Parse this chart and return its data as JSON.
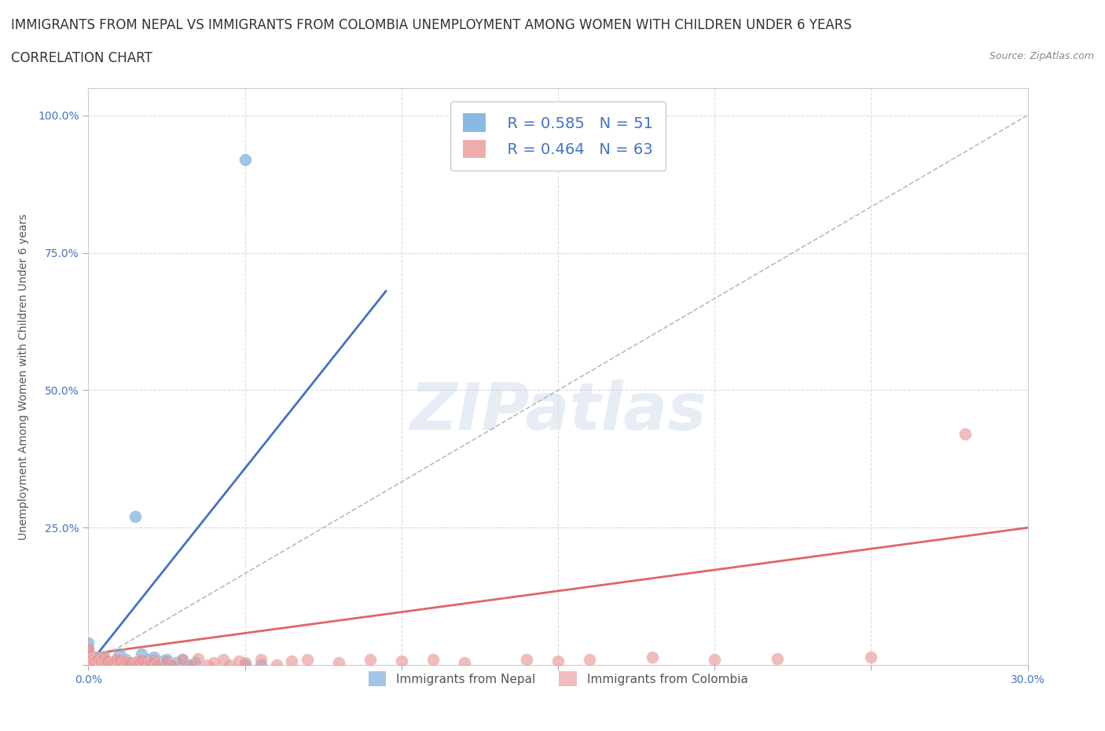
{
  "title_line1": "IMMIGRANTS FROM NEPAL VS IMMIGRANTS FROM COLOMBIA UNEMPLOYMENT AMONG WOMEN WITH CHILDREN UNDER 6 YEARS",
  "title_line2": "CORRELATION CHART",
  "source": "Source: ZipAtlas.com",
  "ylabel": "Unemployment Among Women with Children Under 6 years",
  "xlim": [
    0.0,
    0.3
  ],
  "ylim": [
    0.0,
    1.05
  ],
  "nepal_color": "#6fa8dc",
  "colombia_color": "#ea9999",
  "nepal_line_color": "#4472c4",
  "colombia_line_color": "#e06666",
  "nepal_R": 0.585,
  "nepal_N": 51,
  "colombia_R": 0.464,
  "colombia_N": 63,
  "watermark": "ZIPatlas",
  "nepal_scatter_x": [
    0.0,
    0.0,
    0.0,
    0.0,
    0.0,
    0.0,
    0.0,
    0.0,
    0.001,
    0.001,
    0.002,
    0.002,
    0.002,
    0.003,
    0.003,
    0.003,
    0.004,
    0.004,
    0.005,
    0.005,
    0.005,
    0.006,
    0.006,
    0.007,
    0.008,
    0.009,
    0.01,
    0.01,
    0.011,
    0.012,
    0.013,
    0.014,
    0.015,
    0.015,
    0.016,
    0.017,
    0.018,
    0.019,
    0.02,
    0.021,
    0.022,
    0.024,
    0.025,
    0.026,
    0.028,
    0.03,
    0.032,
    0.034,
    0.05,
    0.055,
    0.05
  ],
  "nepal_scatter_y": [
    0.0,
    0.005,
    0.01,
    0.015,
    0.02,
    0.025,
    0.03,
    0.04,
    0.0,
    0.01,
    0.0,
    0.008,
    0.015,
    0.0,
    0.005,
    0.01,
    0.0,
    0.008,
    0.0,
    0.005,
    0.015,
    0.0,
    0.008,
    0.0,
    0.005,
    0.01,
    0.0,
    0.02,
    0.005,
    0.01,
    0.0,
    0.005,
    0.0,
    0.27,
    0.008,
    0.02,
    0.0,
    0.01,
    0.005,
    0.015,
    0.0,
    0.008,
    0.01,
    0.0,
    0.005,
    0.01,
    0.0,
    0.005,
    0.0,
    0.0,
    0.92
  ],
  "colombia_scatter_x": [
    0.0,
    0.0,
    0.0,
    0.0,
    0.0,
    0.0,
    0.0,
    0.001,
    0.001,
    0.002,
    0.002,
    0.003,
    0.003,
    0.004,
    0.004,
    0.005,
    0.005,
    0.005,
    0.006,
    0.006,
    0.007,
    0.008,
    0.009,
    0.01,
    0.01,
    0.011,
    0.012,
    0.013,
    0.015,
    0.016,
    0.017,
    0.018,
    0.02,
    0.021,
    0.022,
    0.025,
    0.027,
    0.03,
    0.033,
    0.035,
    0.038,
    0.04,
    0.043,
    0.045,
    0.048,
    0.05,
    0.055,
    0.06,
    0.065,
    0.07,
    0.08,
    0.09,
    0.1,
    0.11,
    0.12,
    0.14,
    0.15,
    0.16,
    0.18,
    0.2,
    0.22,
    0.25,
    0.28
  ],
  "colombia_scatter_y": [
    0.0,
    0.005,
    0.01,
    0.015,
    0.02,
    0.025,
    0.03,
    0.0,
    0.01,
    0.0,
    0.008,
    0.0,
    0.012,
    0.0,
    0.008,
    0.0,
    0.005,
    0.015,
    0.0,
    0.008,
    0.0,
    0.005,
    0.01,
    0.0,
    0.01,
    0.0,
    0.008,
    0.005,
    0.0,
    0.008,
    0.01,
    0.0,
    0.005,
    0.01,
    0.0,
    0.008,
    0.0,
    0.01,
    0.0,
    0.012,
    0.0,
    0.005,
    0.01,
    0.0,
    0.008,
    0.005,
    0.01,
    0.0,
    0.008,
    0.01,
    0.005,
    0.01,
    0.008,
    0.01,
    0.005,
    0.01,
    0.008,
    0.01,
    0.015,
    0.01,
    0.012,
    0.015,
    0.42
  ],
  "nepal_line_x": [
    0.0,
    0.095
  ],
  "nepal_line_y": [
    0.0,
    0.68
  ],
  "colombia_line_x": [
    0.0,
    0.3
  ],
  "colombia_line_y": [
    0.02,
    0.25
  ],
  "diag_line_x": [
    0.0,
    0.3
  ],
  "diag_line_y": [
    0.0,
    1.0
  ],
  "grid_color": "#dddddd",
  "background_color": "#ffffff",
  "title_fontsize": 12,
  "subtitle_fontsize": 12,
  "axis_label_fontsize": 10,
  "tick_fontsize": 10,
  "legend_fontsize": 14
}
